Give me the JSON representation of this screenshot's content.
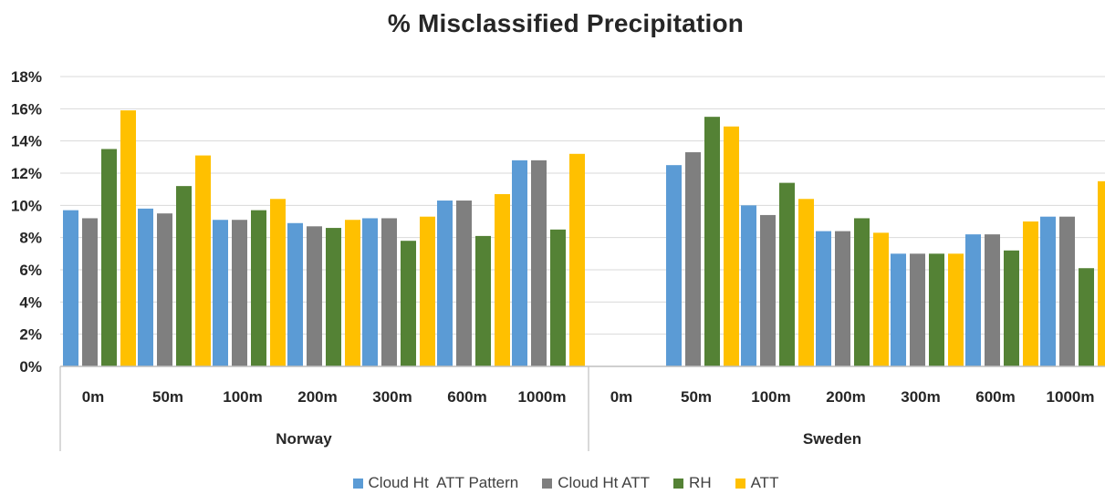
{
  "chart_data": {
    "type": "bar",
    "title": "% Misclassified Precipitation",
    "xlabel": "",
    "ylabel": "",
    "ylim": [
      0,
      18
    ],
    "y_ticks": [
      "0%",
      "2%",
      "4%",
      "6%",
      "8%",
      "10%",
      "12%",
      "14%",
      "16%",
      "18%"
    ],
    "grid": true,
    "legend_position": "bottom",
    "groups": [
      {
        "name": "Norway",
        "categories": [
          "0m",
          "50m",
          "100m",
          "200m",
          "300m",
          "600m",
          "1000m"
        ],
        "series": [
          {
            "name": "Cloud Ht  ATT Pattern",
            "color": "#5b9bd5",
            "values": [
              9.7,
              9.8,
              9.1,
              8.9,
              9.2,
              10.3,
              12.8
            ]
          },
          {
            "name": "Cloud Ht ATT",
            "color": "#7f7f7f",
            "values": [
              9.2,
              9.5,
              9.1,
              8.7,
              9.2,
              10.3,
              12.8
            ]
          },
          {
            "name": "RH",
            "color": "#548235",
            "values": [
              13.5,
              11.2,
              9.7,
              8.6,
              7.8,
              8.1,
              8.5
            ]
          },
          {
            "name": "ATT",
            "color": "#ffc000",
            "values": [
              15.9,
              13.1,
              10.4,
              9.1,
              9.3,
              10.7,
              13.2
            ]
          }
        ]
      },
      {
        "name": "Sweden",
        "categories": [
          "0m",
          "50m",
          "100m",
          "200m",
          "300m",
          "600m",
          "1000m"
        ],
        "series": [
          {
            "name": "Cloud Ht  ATT Pattern",
            "color": "#5b9bd5",
            "values": [
              null,
              12.5,
              10.0,
              8.4,
              7.0,
              8.2,
              9.3
            ]
          },
          {
            "name": "Cloud Ht ATT",
            "color": "#7f7f7f",
            "values": [
              null,
              13.3,
              9.4,
              8.4,
              7.0,
              8.2,
              9.3
            ]
          },
          {
            "name": "RH",
            "color": "#548235",
            "values": [
              null,
              15.5,
              11.4,
              9.2,
              7.0,
              7.2,
              6.1
            ]
          },
          {
            "name": "ATT",
            "color": "#ffc000",
            "values": [
              null,
              14.9,
              10.4,
              8.3,
              7.0,
              9.0,
              11.5
            ]
          }
        ]
      }
    ]
  }
}
